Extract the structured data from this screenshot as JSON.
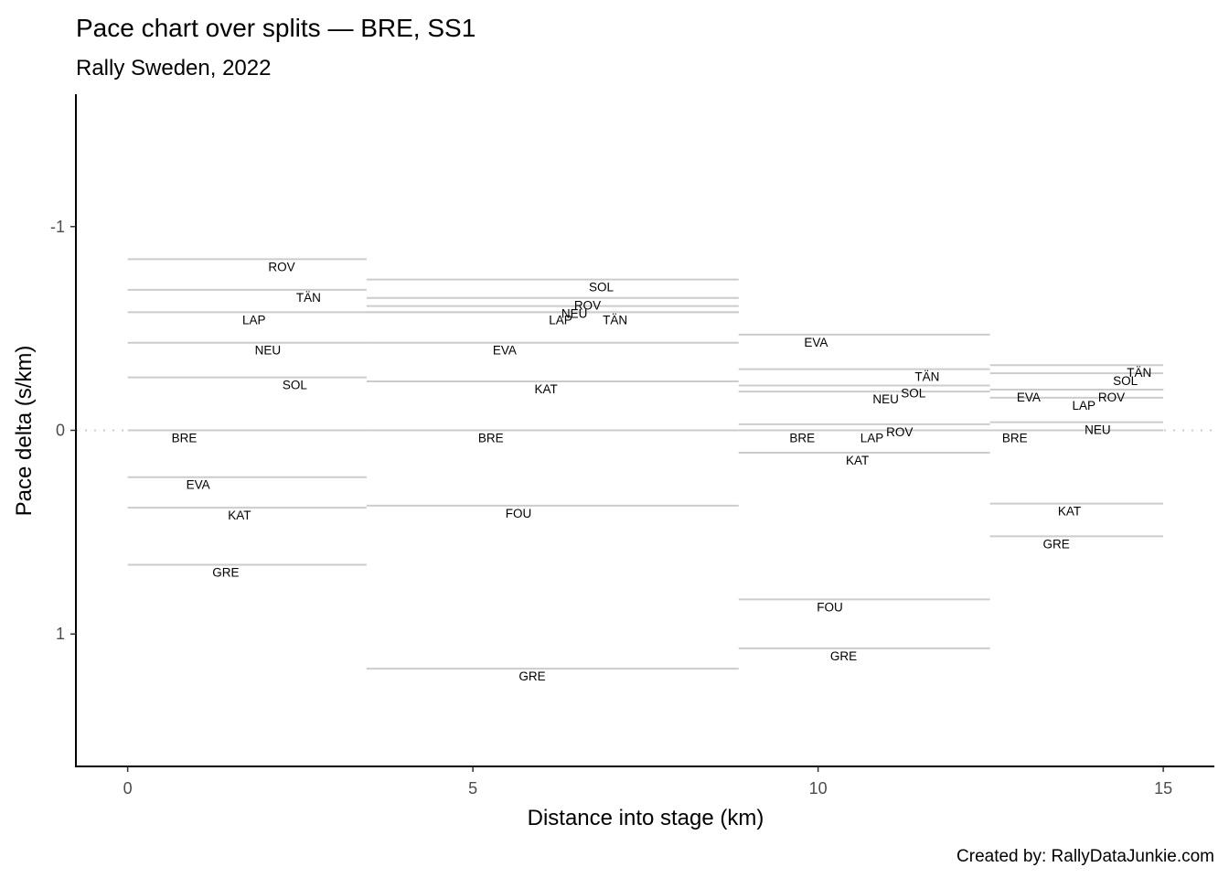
{
  "chart_data": {
    "type": "line",
    "title": "Pace chart over splits — BRE, SS1",
    "subtitle": "Rally Sweden, 2022",
    "xlabel": "Distance into stage (km)",
    "ylabel": "Pace delta (s/km)",
    "caption": "Created by: RallyDataJunkie.com",
    "xlim": [
      -0.75,
      15.74
    ],
    "ylim": [
      -1.65,
      1.65
    ],
    "y_reversed": true,
    "x_ticks": [
      0,
      5,
      10,
      15
    ],
    "x_tick_labels": [
      "0",
      "5",
      "10",
      "15"
    ],
    "y_ticks": [
      -1,
      0,
      1
    ],
    "y_tick_labels": [
      "-1",
      "0",
      "1"
    ],
    "reference_line": 0,
    "grid": false,
    "line_color": "#cccccc",
    "splits": [
      {
        "start": 0,
        "end": 3.46,
        "series": [
          {
            "name": "ROV",
            "value": -0.84,
            "label_x": 2.23
          },
          {
            "name": "TÄN",
            "value": -0.69,
            "label_x": 2.62
          },
          {
            "name": "LAP",
            "value": -0.58,
            "label_x": 1.83
          },
          {
            "name": "NEU",
            "value": -0.43,
            "label_x": 2.03
          },
          {
            "name": "SOL",
            "value": -0.26,
            "label_x": 2.42
          },
          {
            "name": "BRE",
            "value": 0,
            "label_x": 0.82
          },
          {
            "name": "EVA",
            "value": 0.23,
            "label_x": 1.02
          },
          {
            "name": "KAT",
            "value": 0.38,
            "label_x": 1.62
          },
          {
            "name": "GRE",
            "value": 0.66,
            "label_x": 1.42
          }
        ]
      },
      {
        "start": 3.46,
        "end": 8.85,
        "series": [
          {
            "name": "SOL",
            "value": -0.74,
            "label_x": 6.86
          },
          {
            "name": "ROV",
            "value": -0.65,
            "label_x": 6.66
          },
          {
            "name": "NEU",
            "value": -0.61,
            "label_x": 6.47
          },
          {
            "name": "LAP",
            "value": -0.58,
            "label_x": 6.27
          },
          {
            "name": "TÄN",
            "value": -0.58,
            "label_x": 7.06
          },
          {
            "name": "EVA",
            "value": -0.43,
            "label_x": 5.46
          },
          {
            "name": "KAT",
            "value": -0.24,
            "label_x": 6.06
          },
          {
            "name": "BRE",
            "value": 0,
            "label_x": 5.26
          },
          {
            "name": "FOU",
            "value": 0.37,
            "label_x": 5.66
          },
          {
            "name": "GRE",
            "value": 1.17,
            "label_x": 5.86
          }
        ]
      },
      {
        "start": 8.85,
        "end": 12.49,
        "series": [
          {
            "name": "EVA",
            "value": -0.47,
            "label_x": 9.97
          },
          {
            "name": "TÄN",
            "value": -0.3,
            "label_x": 11.58
          },
          {
            "name": "SOL",
            "value": -0.22,
            "label_x": 11.38
          },
          {
            "name": "NEU",
            "value": -0.19,
            "label_x": 10.98
          },
          {
            "name": "ROV",
            "value": -0.03,
            "label_x": 11.18
          },
          {
            "name": "LAP",
            "value": 0,
            "label_x": 10.78
          },
          {
            "name": "BRE",
            "value": 0,
            "label_x": 9.77
          },
          {
            "name": "KAT",
            "value": 0.11,
            "label_x": 10.57
          },
          {
            "name": "FOU",
            "value": 0.83,
            "label_x": 10.17
          },
          {
            "name": "GRE",
            "value": 1.07,
            "label_x": 10.37
          }
        ]
      },
      {
        "start": 12.49,
        "end": 15,
        "series": [
          {
            "name": "TÄN",
            "value": -0.32,
            "label_x": 14.65
          },
          {
            "name": "SOL",
            "value": -0.28,
            "label_x": 14.45
          },
          {
            "name": "ROV",
            "value": -0.2,
            "label_x": 14.25
          },
          {
            "name": "EVA",
            "value": -0.2,
            "label_x": 13.05
          },
          {
            "name": "LAP",
            "value": -0.16,
            "label_x": 13.85
          },
          {
            "name": "NEU",
            "value": -0.04,
            "label_x": 14.05
          },
          {
            "name": "BRE",
            "value": 0,
            "label_x": 12.85
          },
          {
            "name": "KAT",
            "value": 0.36,
            "label_x": 13.64
          },
          {
            "name": "GRE",
            "value": 0.52,
            "label_x": 13.45
          }
        ]
      }
    ]
  }
}
